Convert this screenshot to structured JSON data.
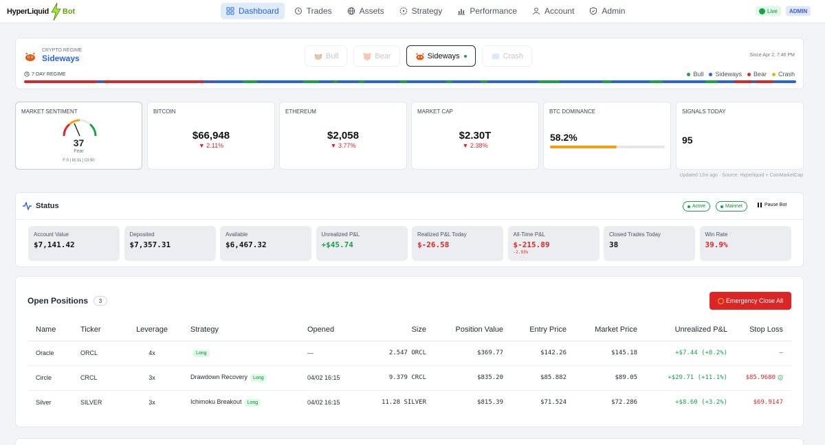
{
  "nav": {
    "logo_word1": "HyperLiquid",
    "logo_word2": "Bot",
    "links": [
      {
        "label": "Dashboard",
        "icon": "grid-icon",
        "active": true
      },
      {
        "label": "Trades",
        "icon": "history-icon"
      },
      {
        "label": "Assets",
        "icon": "globe-icon"
      },
      {
        "label": "Strategy",
        "icon": "dial-icon"
      },
      {
        "label": "Performance",
        "icon": "bar-chart-icon"
      },
      {
        "label": "Account",
        "icon": "user-icon"
      },
      {
        "label": "Admin",
        "icon": "shield-icon"
      }
    ],
    "live_label": "Live",
    "admin_label": "ADMIN"
  },
  "regime": {
    "caption": "CRYPTO REGIME",
    "value": "Sideways",
    "buttons": [
      {
        "label": "Bull",
        "icon": "bull-icon"
      },
      {
        "label": "Bear",
        "icon": "bear-icon"
      },
      {
        "label": "Sideways",
        "icon": "crab-icon",
        "active": true
      },
      {
        "label": "Crash",
        "icon": "crash-icon"
      }
    ],
    "since": "Since Apr 2, 7:46 PM",
    "seven_day_label": "7-DAY REGIME",
    "legend": [
      {
        "label": "Bull",
        "color": "#16a34a"
      },
      {
        "label": "Sideways",
        "color": "#2563eb"
      },
      {
        "label": "Bear",
        "color": "#dc2626"
      },
      {
        "label": "Crash",
        "color": "#eab308"
      }
    ]
  },
  "stats": {
    "sentiment": {
      "label": "MARKET SENTIMENT",
      "value": "37",
      "level": 37,
      "class": "Fear",
      "sub": "F:0 | M:31 | OI:90"
    },
    "bitcoin": {
      "label": "BITCOIN",
      "value": "$66,948",
      "change": "▼ 2.11%"
    },
    "ethereum": {
      "label": "ETHEREUM",
      "value": "$2,058",
      "change": "▼ 3.77%"
    },
    "market_cap": {
      "label": "MARKET CAP",
      "value": "$2.30T",
      "change": "▼ 2.38%"
    },
    "btc_dominance": {
      "label": "BTC DOMINANCE",
      "value": "58.2%",
      "level": 58.2
    },
    "signals": {
      "label": "SIGNALS TODAY",
      "value": "95"
    },
    "updated": "Updated 12m ago · Source: Hyperliquid + CoinMarketCap"
  },
  "status": {
    "title": "Status",
    "active_label": "Active",
    "mainnet_label": "Mainnet",
    "pause_label": "Pause Bot",
    "metrics": [
      {
        "label": "Account Value",
        "value": "$7,141.42"
      },
      {
        "label": "Deposited",
        "value": "$7,357.31"
      },
      {
        "label": "Available",
        "value": "$6,467.32"
      },
      {
        "label": "Unrealized P&L",
        "value": "+$45.74",
        "tone": "pos"
      },
      {
        "label": "Realized P&L Today",
        "value": "$-26.58",
        "tone": "neg"
      },
      {
        "label": "All-Time P&L",
        "value": "$-215.89",
        "tone": "neg",
        "sub": "-2.93%"
      },
      {
        "label": "Closed Trades Today",
        "value": "38"
      },
      {
        "label": "Win Rate",
        "value": "39.9%",
        "tone": "neg"
      }
    ]
  },
  "positions": {
    "title": "Open Positions",
    "count": "3",
    "emergency_label": "Emergency Close All",
    "columns": [
      "Name",
      "Ticker",
      "Leverage",
      "Strategy",
      "Opened",
      "Size",
      "Position Value",
      "Entry Price",
      "Market Price",
      "Unrealized P&L",
      "Stop Loss"
    ],
    "rows": [
      {
        "name": "Oracle",
        "ticker": "ORCL",
        "leverage": "4x",
        "strategy": "",
        "side": "Long",
        "opened": "—",
        "size": "2.547 ORCL",
        "value": "$369.77",
        "entry": "$142.26",
        "market": "$145.18",
        "pnl": "+$7.44 (+8.2%)",
        "stop": "—",
        "shield": false
      },
      {
        "name": "Circle",
        "ticker": "CRCL",
        "leverage": "3x",
        "strategy": "Drawdown Recovery",
        "side": "Long",
        "opened": "04/02 16:15",
        "size": "9.379 CRCL",
        "value": "$835.20",
        "entry": "$85.882",
        "market": "$89.05",
        "pnl": "+$29.71 (+11.1%)",
        "stop": "$85.9680",
        "shield": true
      },
      {
        "name": "Silver",
        "ticker": "SILVER",
        "leverage": "3x",
        "strategy": "Ichimoku Breakout",
        "side": "Long",
        "opened": "04/02 16:15",
        "size": "11.28 SILVER",
        "value": "$815.39",
        "entry": "$71.524",
        "market": "$72.286",
        "pnl": "+$8.60 (+3.2%)",
        "stop": "$69.9147",
        "shield": false
      }
    ]
  }
}
